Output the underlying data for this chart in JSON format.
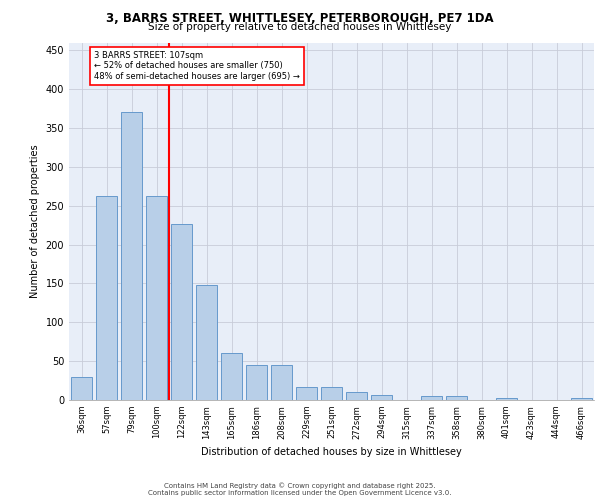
{
  "title_line1": "3, BARRS STREET, WHITTLESEY, PETERBOROUGH, PE7 1DA",
  "title_line2": "Size of property relative to detached houses in Whittlesey",
  "xlabel": "Distribution of detached houses by size in Whittlesey",
  "ylabel": "Number of detached properties",
  "categories": [
    "36sqm",
    "57sqm",
    "79sqm",
    "100sqm",
    "122sqm",
    "143sqm",
    "165sqm",
    "186sqm",
    "208sqm",
    "229sqm",
    "251sqm",
    "272sqm",
    "294sqm",
    "315sqm",
    "337sqm",
    "358sqm",
    "380sqm",
    "401sqm",
    "423sqm",
    "444sqm",
    "466sqm"
  ],
  "values": [
    30,
    262,
    370,
    262,
    227,
    148,
    60,
    45,
    45,
    17,
    17,
    10,
    6,
    0,
    5,
    5,
    0,
    3,
    0,
    0,
    3
  ],
  "bar_color": "#b8cfe8",
  "bar_edge_color": "#6699cc",
  "vline_color": "red",
  "vline_pos": 3.5,
  "annotation_text": "3 BARRS STREET: 107sqm\n← 52% of detached houses are smaller (750)\n48% of semi-detached houses are larger (695) →",
  "annotation_box_color": "white",
  "annotation_box_edge": "red",
  "ylim": [
    0,
    460
  ],
  "yticks": [
    0,
    50,
    100,
    150,
    200,
    250,
    300,
    350,
    400,
    450
  ],
  "bg_color": "#e8eef8",
  "grid_color": "#c8ccd8",
  "footer_line1": "Contains HM Land Registry data © Crown copyright and database right 2025.",
  "footer_line2": "Contains public sector information licensed under the Open Government Licence v3.0."
}
